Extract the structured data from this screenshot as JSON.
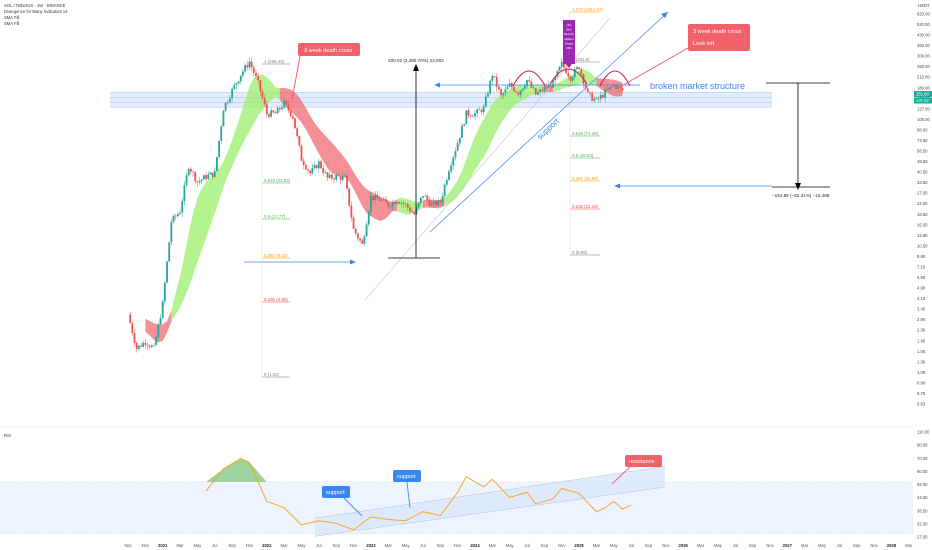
{
  "header": {
    "symbol_line": "SOL / TetherUS · 1W · BINANCE",
    "indicator_line": "Divergence for Many Indicators v4",
    "sma1": "SMA Fill",
    "sma2": "SMA Fill",
    "rsi_label": "RSI",
    "currency": "USDT"
  },
  "price_axis_ticks": [
    "620.00",
    "520.00",
    "430.00",
    "360.00",
    "300.00",
    "250.00",
    "210.00",
    "180.00",
    "150.00",
    "127.00",
    "105.00",
    "88.00",
    "73.50",
    "58.50",
    "48.50",
    "40.50",
    "33.50",
    "27.50",
    "22.50",
    "18.50",
    "15.50",
    "12.80",
    "10.50",
    "8.80",
    "7.10",
    "5.90",
    "4.90",
    "4.10",
    "3.40",
    "2.80",
    "2.30",
    "1.90",
    "1.55",
    "1.30",
    "1.08",
    "0.90",
    "0.75",
    "0.63"
  ],
  "current_price_badges": [
    "151.00",
    "137.22"
  ],
  "rsi_axis_ticks": [
    "110.00",
    "90.00",
    "70.00",
    "60.00",
    "52.00",
    "44.50",
    "38.50",
    "32.50",
    "27.50"
  ],
  "time_axis": [
    "Sep",
    "Nov",
    "2021",
    "Mar",
    "May",
    "Jul",
    "Sep",
    "Nov",
    "2022",
    "Mar",
    "May",
    "Jul",
    "Sep",
    "Nov",
    "2023",
    "Mar",
    "May",
    "Jul",
    "Sep",
    "Nov",
    "2024",
    "Mar",
    "May",
    "Jul",
    "Sep",
    "Nov",
    "2025",
    "Mar",
    "May",
    "Jul",
    "Sep",
    "Nov",
    "2026",
    "Mar",
    "May",
    "Jul",
    "Sep",
    "Nov",
    "2027",
    "Mar",
    "May",
    "Jul",
    "Sep",
    "Nov",
    "2028",
    "Mar"
  ],
  "fib_left": [
    {
      "label": "1 (259.43)",
      "color": "#787b86"
    },
    {
      "label": "0.618 (22.83)",
      "color": "#4caf50"
    },
    {
      "label": "0.5 (17.77)",
      "color": "#4caf50"
    },
    {
      "label": "0.382 (9.02)",
      "color": "#ff9800"
    },
    {
      "label": "0.236 (4.50)",
      "color": "#f44336"
    },
    {
      "label": "0 (1.02)",
      "color": "#787b86"
    }
  ],
  "fib_right": [
    {
      "label": "1.272 (1012.47)",
      "color": "#ff9800"
    },
    {
      "label": "1 (261.6)",
      "color": "#787b86"
    },
    {
      "label": "0.618 (71.38)",
      "color": "#4caf50"
    },
    {
      "label": "0.5 (48.53)",
      "color": "#4caf50"
    },
    {
      "label": "0.382 (32.98)",
      "color": "#ff9800"
    },
    {
      "label": "0.236 (21.18)",
      "color": "#f44336"
    },
    {
      "label": "0 (8.98)",
      "color": "#787b86"
    }
  ],
  "annotations": {
    "death_cross_left": "3 week death cross",
    "death_cross_right": "3 week death cross",
    "look_left": "Look left",
    "broken_structure": "broken market structure",
    "support_line": "support",
    "measure_up": "230.02 (2,280.70%) 23,002",
    "measure_down": "−154.89 (−82.31%) −15,489",
    "purple_box": [
      "Hist",
      "Bull",
      "Bearish",
      "Hidden",
      "Diverg",
      "ABC",
      "...",
      "…"
    ],
    "rsi_support_1": "support",
    "rsi_support_2": "support",
    "rsi_resistance": "resistance"
  },
  "colors": {
    "bull": "#26a69a",
    "bear": "#ef5350",
    "green_band": "#9cef6b",
    "red_band": "#f06b73",
    "rsi_line": "#f5a623",
    "annot_red": "#f0616a",
    "annot_blue": "#3a86f0",
    "purple": "#9c27b0"
  },
  "chart_data": {
    "type": "candlestick",
    "title": "SOL / TetherUS · 1W · BINANCE",
    "yscale": "log",
    "ylim": [
      0.6,
      620
    ],
    "x_start": "2020-08",
    "x_end": "2028-03",
    "price_path_monthly": [
      {
        "t": "2020-08",
        "v": 3.2
      },
      {
        "t": "2020-09",
        "v": 2.9
      },
      {
        "t": "2020-10",
        "v": 1.6
      },
      {
        "t": "2020-11",
        "v": 1.8
      },
      {
        "t": "2020-12",
        "v": 1.6
      },
      {
        "t": "2021-01",
        "v": 3.5
      },
      {
        "t": "2021-02",
        "v": 15
      },
      {
        "t": "2021-03",
        "v": 18
      },
      {
        "t": "2021-04",
        "v": 40
      },
      {
        "t": "2021-05",
        "v": 30
      },
      {
        "t": "2021-06",
        "v": 33
      },
      {
        "t": "2021-07",
        "v": 35
      },
      {
        "t": "2021-08",
        "v": 110
      },
      {
        "t": "2021-09",
        "v": 150
      },
      {
        "t": "2021-10",
        "v": 200
      },
      {
        "t": "2021-11",
        "v": 250
      },
      {
        "t": "2021-12",
        "v": 170
      },
      {
        "t": "2022-01",
        "v": 100
      },
      {
        "t": "2022-02",
        "v": 100
      },
      {
        "t": "2022-03",
        "v": 120
      },
      {
        "t": "2022-04",
        "v": 95
      },
      {
        "t": "2022-05",
        "v": 45
      },
      {
        "t": "2022-06",
        "v": 35
      },
      {
        "t": "2022-07",
        "v": 42
      },
      {
        "t": "2022-08",
        "v": 32
      },
      {
        "t": "2022-09",
        "v": 33
      },
      {
        "t": "2022-10",
        "v": 32
      },
      {
        "t": "2022-11",
        "v": 13
      },
      {
        "t": "2022-12",
        "v": 9.9
      },
      {
        "t": "2023-01",
        "v": 23
      },
      {
        "t": "2023-02",
        "v": 22
      },
      {
        "t": "2023-03",
        "v": 20
      },
      {
        "t": "2023-04",
        "v": 22
      },
      {
        "t": "2023-05",
        "v": 20
      },
      {
        "t": "2023-06",
        "v": 17
      },
      {
        "t": "2023-07",
        "v": 24
      },
      {
        "t": "2023-08",
        "v": 20
      },
      {
        "t": "2023-09",
        "v": 21
      },
      {
        "t": "2023-10",
        "v": 38
      },
      {
        "t": "2023-11",
        "v": 60
      },
      {
        "t": "2023-12",
        "v": 100
      },
      {
        "t": "2024-01",
        "v": 100
      },
      {
        "t": "2024-02",
        "v": 110
      },
      {
        "t": "2024-03",
        "v": 200
      },
      {
        "t": "2024-04",
        "v": 135
      },
      {
        "t": "2024-05",
        "v": 165
      },
      {
        "t": "2024-06",
        "v": 145
      },
      {
        "t": "2024-07",
        "v": 180
      },
      {
        "t": "2024-08",
        "v": 140
      },
      {
        "t": "2024-09",
        "v": 155
      },
      {
        "t": "2024-10",
        "v": 170
      },
      {
        "t": "2024-11",
        "v": 240
      },
      {
        "t": "2024-12",
        "v": 190
      },
      {
        "t": "2025-01",
        "v": 230
      },
      {
        "t": "2025-02",
        "v": 140
      },
      {
        "t": "2025-03",
        "v": 125
      },
      {
        "t": "2025-04",
        "v": 145
      },
      {
        "t": "2025-05",
        "v": 165
      },
      {
        "t": "2025-06",
        "v": 150
      }
    ],
    "rsi_path_monthly": [
      {
        "t": "2021-06",
        "v": 63
      },
      {
        "t": "2021-08",
        "v": 80
      },
      {
        "t": "2021-10",
        "v": 88
      },
      {
        "t": "2021-11",
        "v": 85
      },
      {
        "t": "2022-01",
        "v": 55
      },
      {
        "t": "2022-03",
        "v": 50
      },
      {
        "t": "2022-05",
        "v": 37
      },
      {
        "t": "2022-07",
        "v": 40
      },
      {
        "t": "2022-09",
        "v": 38
      },
      {
        "t": "2022-11",
        "v": 33
      },
      {
        "t": "2023-01",
        "v": 43
      },
      {
        "t": "2023-03",
        "v": 41
      },
      {
        "t": "2023-05",
        "v": 40
      },
      {
        "t": "2023-07",
        "v": 47
      },
      {
        "t": "2023-09",
        "v": 44
      },
      {
        "t": "2023-11",
        "v": 62
      },
      {
        "t": "2023-12",
        "v": 74
      },
      {
        "t": "2024-02",
        "v": 66
      },
      {
        "t": "2024-03",
        "v": 72
      },
      {
        "t": "2024-05",
        "v": 58
      },
      {
        "t": "2024-07",
        "v": 62
      },
      {
        "t": "2024-08",
        "v": 53
      },
      {
        "t": "2024-10",
        "v": 57
      },
      {
        "t": "2024-11",
        "v": 65
      },
      {
        "t": "2025-01",
        "v": 61
      },
      {
        "t": "2025-03",
        "v": 47
      },
      {
        "t": "2025-04",
        "v": 50
      },
      {
        "t": "2025-05",
        "v": 55
      },
      {
        "t": "2025-06",
        "v": 49
      },
      {
        "t": "2025-07",
        "v": 52
      }
    ]
  }
}
